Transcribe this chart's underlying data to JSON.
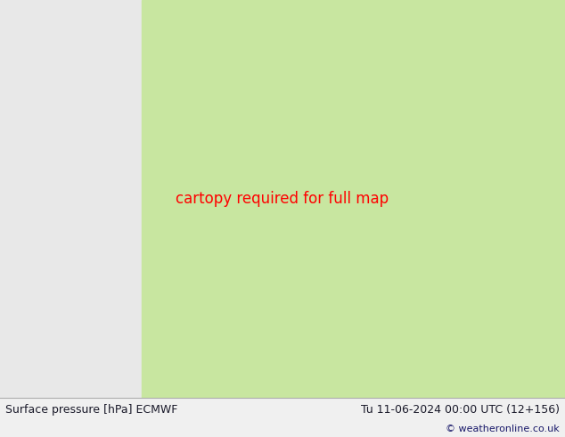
{
  "title_left": "Surface pressure [hPa] ECMWF",
  "title_right": "Tu 11-06-2024 00:00 UTC (12+156)",
  "copyright": "© weatheronline.co.uk",
  "bg_color": "#e8e8e8",
  "land_color": "#c8e6a0",
  "mountain_color": "#b0a898",
  "water_color": "#e8e8e8",
  "figure_width": 6.34,
  "figure_height": 4.9,
  "dpi": 100,
  "bottom_text_color": "#1a1a2a",
  "label_fontsize": 9,
  "copyright_fontsize": 8
}
